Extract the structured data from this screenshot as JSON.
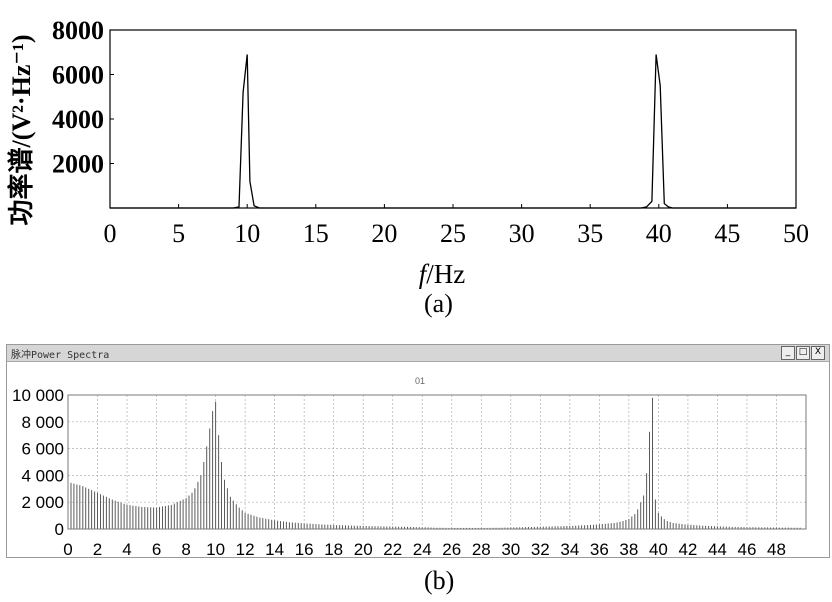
{
  "chart_data": [
    {
      "type": "line",
      "panel": "(a)",
      "ylabel": "功率谱/(V²·Hz⁻¹)",
      "xlabel_italic": "f",
      "xlabel_rest": "/Hz",
      "xlim": [
        0,
        50
      ],
      "ylim": [
        0,
        8000
      ],
      "xticks": [
        "0",
        "5",
        "10",
        "15",
        "20",
        "25",
        "30",
        "35",
        "40",
        "45",
        "50"
      ],
      "yticks": [
        "2000",
        "4000",
        "6000",
        "8000"
      ],
      "grid": false,
      "x": [
        9.0,
        9.4,
        9.7,
        10.0,
        10.2,
        10.5,
        10.9,
        11.4,
        38.7,
        39.1,
        39.5,
        39.8,
        40.1,
        40.4,
        40.7,
        41.0
      ],
      "y": [
        0,
        50,
        5200,
        6900,
        1200,
        100,
        0,
        0,
        0,
        50,
        300,
        6900,
        5500,
        200,
        50,
        0
      ],
      "series": [
        {
          "values": [
            0,
            50,
            5200,
            6900,
            1200,
            100,
            0,
            0,
            0,
            50,
            300,
            6900,
            5500,
            200,
            50,
            0
          ]
        }
      ]
    },
    {
      "type": "bar",
      "panel": "(b)",
      "title": "01",
      "window_title": "Power Spectra",
      "xlim": [
        0,
        50
      ],
      "ylim": [
        0,
        10000
      ],
      "xticks": [
        "0",
        "2",
        "4",
        "6",
        "8",
        "10",
        "12",
        "14",
        "16",
        "18",
        "20",
        "22",
        "24",
        "26",
        "28",
        "30",
        "32",
        "34",
        "36",
        "38",
        "40",
        "42",
        "44",
        "46",
        "48"
      ],
      "yticks": [
        "0",
        "2 000",
        "4 000",
        "6 000",
        "8 000",
        "10 000"
      ],
      "grid": true,
      "x": [
        0,
        1,
        2,
        3,
        4,
        5,
        6,
        7,
        8,
        8.5,
        9,
        9.3,
        9.6,
        9.8,
        10,
        10.2,
        10.5,
        11,
        11.5,
        12,
        13,
        14,
        15,
        16,
        17,
        18,
        19,
        20,
        21,
        22,
        23,
        24,
        25,
        26,
        27,
        28,
        29,
        30,
        31,
        32,
        33,
        34,
        35,
        36,
        37,
        37.5,
        38,
        38.5,
        39,
        39.3,
        39.5,
        39.6,
        39.7,
        39.8,
        40,
        40.3,
        40.6,
        41,
        42,
        43,
        44,
        45,
        46,
        47,
        48,
        49
      ],
      "values": [
        3500,
        3200,
        2700,
        2200,
        1800,
        1650,
        1600,
        1800,
        2300,
        2800,
        4000,
        5500,
        7500,
        8800,
        9500,
        7000,
        4000,
        2400,
        1700,
        1200,
        850,
        650,
        500,
        420,
        350,
        300,
        260,
        230,
        200,
        180,
        160,
        130,
        100,
        80,
        80,
        80,
        90,
        110,
        140,
        170,
        200,
        230,
        280,
        350,
        450,
        560,
        750,
        1200,
        2500,
        5000,
        9500,
        9800,
        5000,
        2200,
        1200,
        800,
        600,
        450,
        320,
        250,
        200,
        160,
        140,
        120,
        110,
        100
      ]
    }
  ],
  "captions": {
    "a": "(a)",
    "b": "(b)"
  },
  "window": {
    "title": "Power Spectra",
    "title_prefix": "脉冲",
    "btn_min": "_",
    "btn_max": "□",
    "btn_close": "X"
  },
  "colors": {
    "line": "#000000",
    "bar": "#5a5a5a",
    "grid": "#b0b0b0",
    "frame": "#808080"
  }
}
